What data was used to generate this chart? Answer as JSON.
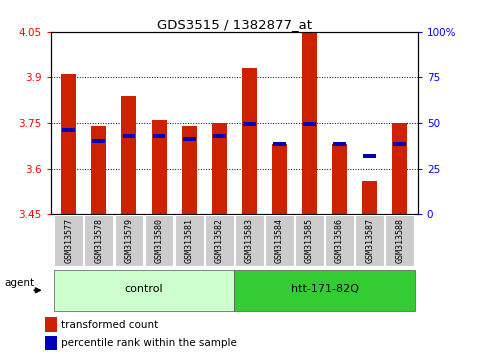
{
  "title": "GDS3515 / 1382877_at",
  "samples": [
    "GSM313577",
    "GSM313578",
    "GSM313579",
    "GSM313580",
    "GSM313581",
    "GSM313582",
    "GSM313583",
    "GSM313584",
    "GSM313585",
    "GSM313586",
    "GSM313587",
    "GSM313588"
  ],
  "red_values": [
    3.91,
    3.74,
    3.84,
    3.76,
    3.74,
    3.75,
    3.93,
    3.68,
    4.05,
    3.68,
    3.56,
    3.75
  ],
  "blue_values": [
    3.72,
    3.685,
    3.7,
    3.7,
    3.69,
    3.7,
    3.74,
    3.675,
    3.74,
    3.675,
    3.635,
    3.675
  ],
  "baseline": 3.45,
  "ylim_left": [
    3.45,
    4.05
  ],
  "ylim_right": [
    0,
    100
  ],
  "yticks_left": [
    3.45,
    3.6,
    3.75,
    3.9,
    4.05
  ],
  "yticks_right": [
    0,
    25,
    50,
    75,
    100
  ],
  "ytick_labels_left": [
    "3.45",
    "3.6",
    "3.75",
    "3.9",
    "4.05"
  ],
  "ytick_labels_right": [
    "0",
    "25",
    "50",
    "75",
    "100%"
  ],
  "hlines": [
    3.6,
    3.75,
    3.9
  ],
  "bar_color": "#CC2200",
  "blue_color": "#0000BB",
  "background_color": "#FFFFFF",
  "group_labels": [
    "control",
    "htt-171-82Q"
  ],
  "group_colors": [
    "#CCFFCC",
    "#33CC33"
  ],
  "group_ranges": [
    [
      0,
      5
    ],
    [
      6,
      11
    ]
  ],
  "agent_label": "agent",
  "legend_items": [
    "transformed count",
    "percentile rank within the sample"
  ]
}
